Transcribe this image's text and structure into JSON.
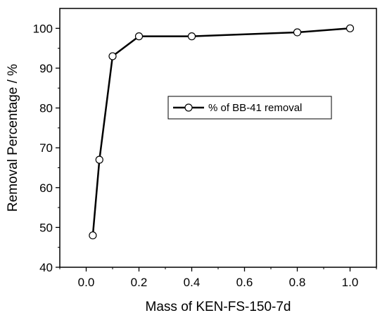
{
  "chart_data": {
    "type": "line",
    "title": "",
    "xlabel": "Mass of KEN-FS-150-7d",
    "ylabel": "Removal Percentage / %",
    "xlim": [
      -0.1,
      1.1
    ],
    "ylim": [
      40,
      105
    ],
    "xticks": [
      0.0,
      0.2,
      0.4,
      0.6,
      0.8,
      1.0
    ],
    "xtick_labels": [
      "0.0",
      "0.2",
      "0.4",
      "0.6",
      "0.8",
      "1.0"
    ],
    "yticks": [
      40,
      50,
      60,
      70,
      80,
      90,
      100
    ],
    "ytick_labels": [
      "40",
      "50",
      "60",
      "70",
      "80",
      "90",
      "100"
    ],
    "grid": false,
    "legend_position": "center-right",
    "series": [
      {
        "name": "% of BB-41 removal",
        "marker": "open-circle",
        "color": "#000000",
        "x": [
          0.025,
          0.05,
          0.1,
          0.2,
          0.4,
          0.8,
          1.0
        ],
        "y": [
          48,
          67,
          93,
          98,
          98,
          99,
          100
        ]
      }
    ]
  }
}
